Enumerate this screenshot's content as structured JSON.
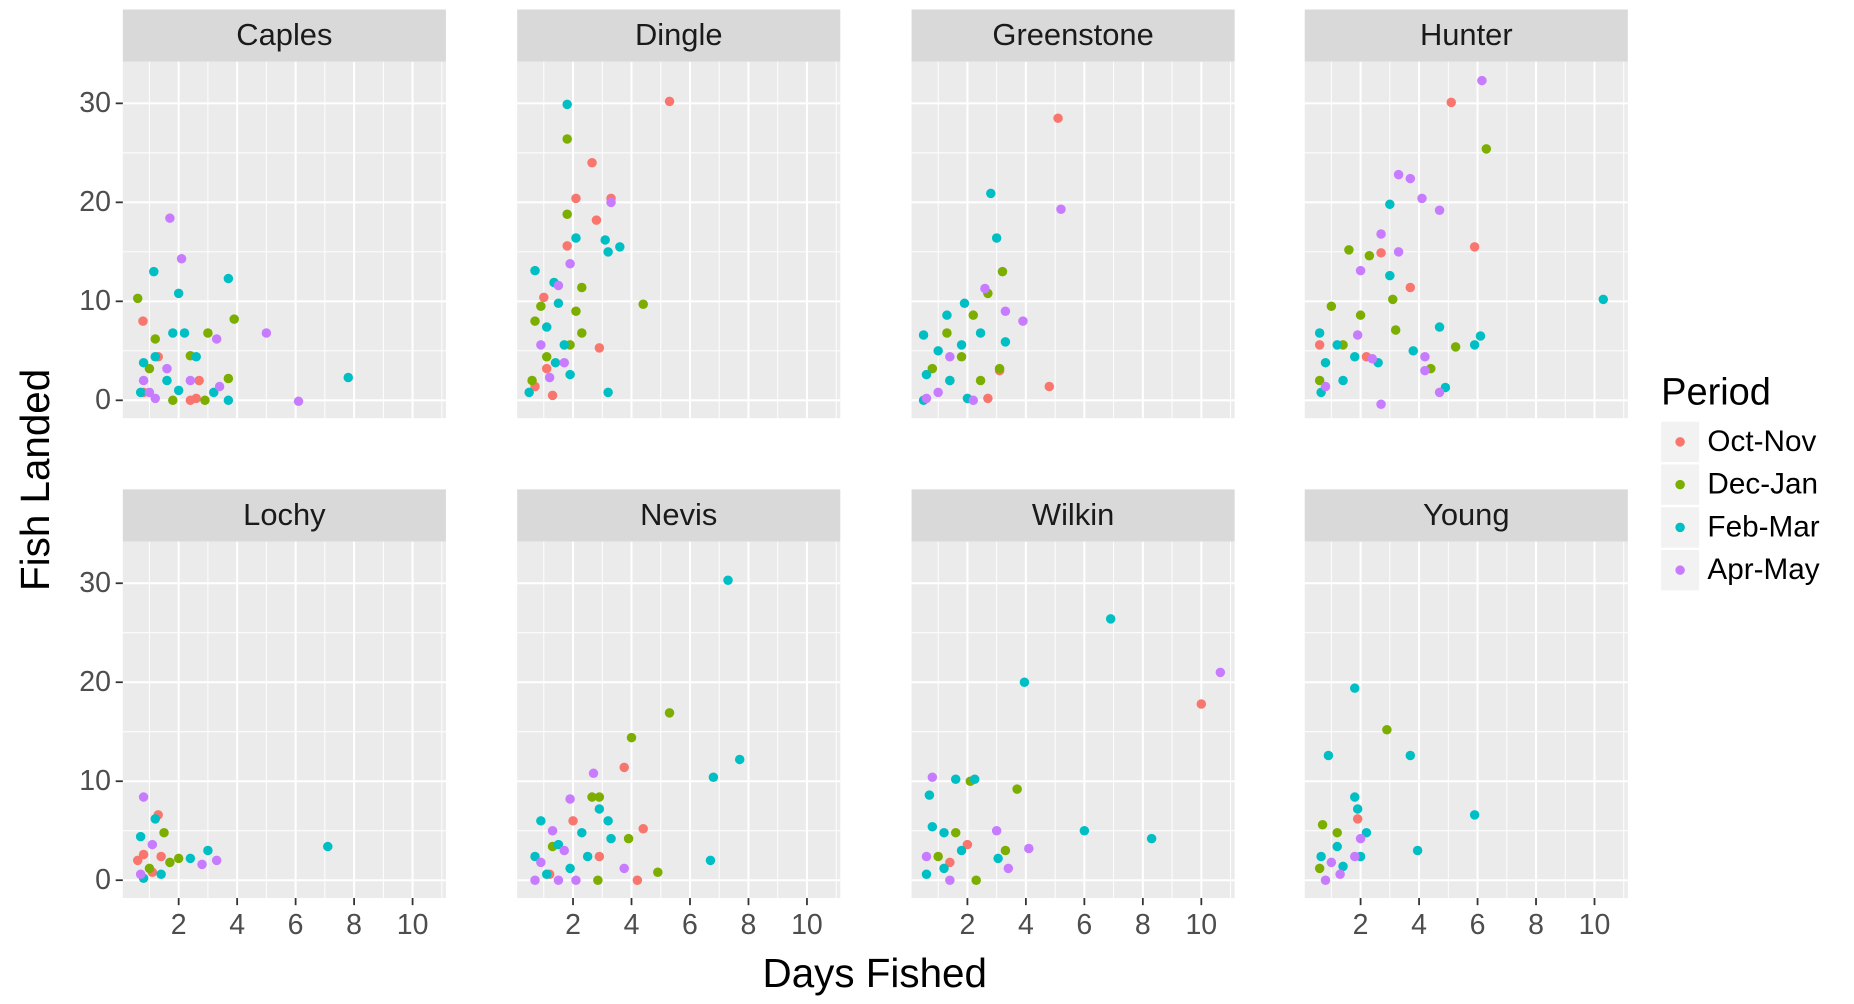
{
  "chart_data": {
    "type": "scatter",
    "x_label": "Days Fished",
    "y_label": "Fish Landed",
    "legend_title": "Period",
    "xlim": [
      0.09,
      11.14
    ],
    "ylim": [
      -1.8,
      34.2
    ],
    "xticks": [
      2,
      4,
      6,
      8,
      10
    ],
    "yticks": [
      0,
      10,
      20,
      30
    ],
    "grid": true,
    "facets": [
      {
        "title": "Caples",
        "series": [
          {
            "name": "Oct-Nov",
            "color": "#F8766D",
            "x": [
              0.78,
              1.3,
              2.4,
              2.6,
              2.7,
              0.8
            ],
            "y": [
              8.0,
              4.4,
              0,
              0.2,
              2,
              0.8
            ]
          },
          {
            "name": "Dec-Jan",
            "color": "#7CAE00",
            "x": [
              0.6,
              3.9,
              3.0,
              1.2,
              3.7,
              1.8,
              2.4,
              1.0,
              2.9
            ],
            "y": [
              10.3,
              8.2,
              6.8,
              6.2,
              2.2,
              0,
              4.5,
              3.2,
              0
            ]
          },
          {
            "name": "Feb-Mar",
            "color": "#00BFC4",
            "x": [
              1.15,
              2.0,
              3.7,
              7.8,
              3.7,
              1.8,
              2.2,
              0.8,
              1.2,
              2.6,
              1.6,
              2.0,
              3.2,
              0.7
            ],
            "y": [
              13,
              10.8,
              12.3,
              2.3,
              0,
              6.8,
              6.8,
              3.8,
              4.4,
              4.4,
              2,
              1,
              0.8,
              0.8
            ]
          },
          {
            "name": "Apr-May",
            "color": "#C77CFF",
            "x": [
              1.7,
              2.1,
              5.0,
              6.1,
              3.3,
              0.8,
              1.0,
              1.2,
              2.4,
              1.6,
              3.4
            ],
            "y": [
              18.4,
              14.3,
              6.8,
              -0.1,
              6.2,
              2,
              0.8,
              0.2,
              2,
              3.2,
              1.4
            ]
          }
        ]
      },
      {
        "title": "Dingle",
        "series": [
          {
            "name": "Oct-Nov",
            "color": "#F8766D",
            "x": [
              5.3,
              2.65,
              2.1,
              3.3,
              2.8,
              1.8,
              1.0,
              2.9,
              1.1,
              0.7,
              1.3
            ],
            "y": [
              30.2,
              24,
              20.4,
              20.4,
              18.2,
              15.6,
              10.4,
              5.3,
              3.2,
              1.4,
              0.5
            ]
          },
          {
            "name": "Dec-Jan",
            "color": "#7CAE00",
            "x": [
              1.8,
              1.8,
              2.3,
              4.4,
              0.9,
              2.1,
              0.7,
              1.9,
              1.1,
              0.6,
              2.3
            ],
            "y": [
              26.4,
              18.8,
              11.4,
              9.7,
              9.5,
              9,
              8,
              5.6,
              4.4,
              2,
              6.8
            ]
          },
          {
            "name": "Feb-Mar",
            "color": "#00BFC4",
            "x": [
              1.8,
              2.1,
              3.1,
              3.6,
              3.2,
              0.7,
              1.35,
              1.5,
              3.2,
              1.1,
              1.7,
              1.4,
              0.5,
              1.9
            ],
            "y": [
              29.9,
              16.4,
              16.2,
              15.5,
              15,
              13.1,
              11.9,
              9.8,
              0.8,
              7.4,
              5.6,
              3.8,
              0.8,
              2.6
            ]
          },
          {
            "name": "Apr-May",
            "color": "#C77CFF",
            "x": [
              1.9,
              3.3,
              1.5,
              0.9,
              1.2,
              1.7
            ],
            "y": [
              13.8,
              20,
              11.6,
              5.6,
              2.3,
              3.8
            ]
          }
        ]
      },
      {
        "title": "Greenstone",
        "series": [
          {
            "name": "Oct-Nov",
            "color": "#F8766D",
            "x": [
              5.1,
              4.8,
              3.1,
              1.4,
              2.7
            ],
            "y": [
              28.5,
              1.4,
              3.0,
              2,
              0.2
            ]
          },
          {
            "name": "Dec-Jan",
            "color": "#7CAE00",
            "x": [
              3.2,
              2.7,
              2.2,
              1.3,
              1.8,
              3.1,
              0.8,
              2.45
            ],
            "y": [
              13,
              10.8,
              8.6,
              6.8,
              4.4,
              3.2,
              3.2,
              2
            ]
          },
          {
            "name": "Feb-Mar",
            "color": "#00BFC4",
            "x": [
              2.8,
              3.0,
              1.9,
              1.3,
              0.5,
              1.0,
              0.6,
              1.8,
              2.45,
              3.3,
              0.5,
              1.4,
              2.0
            ],
            "y": [
              20.9,
              16.4,
              9.8,
              8.6,
              6.6,
              5.0,
              2.6,
              5.6,
              6.8,
              5.9,
              0,
              2,
              0.2
            ]
          },
          {
            "name": "Apr-May",
            "color": "#C77CFF",
            "x": [
              5.2,
              2.6,
              3.9,
              3.3,
              1.0,
              0.6,
              1.4,
              2.2
            ],
            "y": [
              19.3,
              11.3,
              8,
              9,
              0.8,
              0.2,
              4.4,
              0
            ]
          }
        ]
      },
      {
        "title": "Hunter",
        "series": [
          {
            "name": "Oct-Nov",
            "color": "#F8766D",
            "x": [
              5.1,
              5.9,
              3.7,
              2.7,
              2.2,
              0.6
            ],
            "y": [
              30.1,
              15.5,
              11.4,
              14.9,
              4.4,
              5.6
            ]
          },
          {
            "name": "Dec-Jan",
            "color": "#7CAE00",
            "x": [
              6.3,
              1.6,
              2.3,
              2.0,
              3.1,
              5.25,
              1.0,
              1.4,
              3.2,
              4.4,
              0.6
            ],
            "y": [
              25.4,
              15.2,
              14.6,
              8.6,
              10.2,
              5.4,
              9.5,
              5.6,
              7.1,
              3.2,
              2
            ]
          },
          {
            "name": "Feb-Mar",
            "color": "#00BFC4",
            "x": [
              10.3,
              3.0,
              3.0,
              4.7,
              6.1,
              5.9,
              4.9,
              0.6,
              1.2,
              0.8,
              1.8,
              2.6,
              3.8,
              1.4,
              0.65
            ],
            "y": [
              10.2,
              19.8,
              12.6,
              7.4,
              6.5,
              5.6,
              1.3,
              6.8,
              5.6,
              3.8,
              4.4,
              3.8,
              5.0,
              2,
              0.8
            ]
          },
          {
            "name": "Apr-May",
            "color": "#C77CFF",
            "x": [
              6.15,
              3.3,
              3.7,
              4.1,
              4.7,
              2.7,
              3.3,
              2.0,
              1.9,
              4.2,
              4.7,
              2.7,
              0.8,
              2.4,
              4.2
            ],
            "y": [
              32.3,
              22.8,
              22.4,
              20.4,
              19.2,
              16.8,
              15,
              13.1,
              6.6,
              3,
              0.8,
              -0.4,
              1.4,
              4.2,
              4.4
            ]
          }
        ]
      },
      {
        "title": "Lochy",
        "series": [
          {
            "name": "Oct-Nov",
            "color": "#F8766D",
            "x": [
              0.8,
              1.3,
              1.4,
              1.1,
              0.6
            ],
            "y": [
              2.6,
              6.6,
              2.4,
              0.8,
              2
            ]
          },
          {
            "name": "Dec-Jan",
            "color": "#7CAE00",
            "x": [
              1.5,
              1.7,
              1.0,
              2.0
            ],
            "y": [
              4.8,
              1.8,
              1.2,
              2.2
            ]
          },
          {
            "name": "Feb-Mar",
            "color": "#00BFC4",
            "x": [
              7.1,
              3.0,
              2.4,
              0.7,
              1.2,
              0.8,
              1.4
            ],
            "y": [
              3.4,
              3.0,
              2.2,
              4.4,
              6.2,
              0.2,
              0.6
            ]
          },
          {
            "name": "Apr-May",
            "color": "#C77CFF",
            "x": [
              0.8,
              3.3,
              2.8,
              1.1,
              0.7
            ],
            "y": [
              8.4,
              2,
              1.6,
              3.6,
              0.6
            ]
          }
        ]
      },
      {
        "title": "Nevis",
        "series": [
          {
            "name": "Oct-Nov",
            "color": "#F8766D",
            "x": [
              3.75,
              4.4,
              4.2,
              2.0,
              1.2,
              2.9
            ],
            "y": [
              11.4,
              5.2,
              0,
              6,
              0.6,
              2.4
            ]
          },
          {
            "name": "Dec-Jan",
            "color": "#7CAE00",
            "x": [
              5.3,
              4.0,
              2.65,
              2.9,
              3.9,
              4.9,
              2.85,
              1.3
            ],
            "y": [
              16.9,
              14.4,
              8.4,
              8.4,
              4.2,
              0.8,
              0,
              3.4
            ]
          },
          {
            "name": "Feb-Mar",
            "color": "#00BFC4",
            "x": [
              7.3,
              7.7,
              6.8,
              6.7,
              3.2,
              2.9,
              2.3,
              1.5,
              0.9,
              0.7,
              1.1,
              1.9,
              2.5,
              3.3
            ],
            "y": [
              30.3,
              12.2,
              10.4,
              2,
              6,
              7.2,
              4.8,
              3.6,
              6,
              2.4,
              0.6,
              1.2,
              2.4,
              4.2
            ]
          },
          {
            "name": "Apr-May",
            "color": "#C77CFF",
            "x": [
              2.7,
              1.9,
              3.75,
              1.3,
              0.7,
              1.5,
              0.9,
              2.1,
              1.7
            ],
            "y": [
              10.8,
              8.2,
              1.2,
              5,
              0,
              0,
              1.8,
              0,
              3
            ]
          }
        ]
      },
      {
        "title": "Wilkin",
        "series": [
          {
            "name": "Oct-Nov",
            "color": "#F8766D",
            "x": [
              10.0,
              2.0,
              1.4
            ],
            "y": [
              17.8,
              3.6,
              1.8
            ]
          },
          {
            "name": "Dec-Jan",
            "color": "#7CAE00",
            "x": [
              3.7,
              2.1,
              3.3,
              2.3,
              1.0,
              1.6
            ],
            "y": [
              9.2,
              10,
              3,
              0,
              2.4,
              4.8
            ]
          },
          {
            "name": "Feb-Mar",
            "color": "#00BFC4",
            "x": [
              6.9,
              3.95,
              6.0,
              8.3,
              1.6,
              2.25,
              0.7,
              0.8,
              1.2,
              1.8,
              0.6,
              3.05,
              1.2
            ],
            "y": [
              26.4,
              20,
              5,
              4.2,
              10.2,
              10.2,
              8.6,
              5.4,
              4.8,
              3,
              0.6,
              2.2,
              1.2
            ]
          },
          {
            "name": "Apr-May",
            "color": "#C77CFF",
            "x": [
              10.65,
              0.8,
              4.1,
              3.0,
              3.4,
              0.6,
              1.4
            ],
            "y": [
              21,
              10.4,
              3.2,
              5,
              1.2,
              2.4,
              0
            ]
          }
        ]
      },
      {
        "title": "Young",
        "series": [
          {
            "name": "Oct-Nov",
            "color": "#F8766D",
            "x": [
              1.9
            ],
            "y": [
              6.2
            ]
          },
          {
            "name": "Dec-Jan",
            "color": "#7CAE00",
            "x": [
              2.9,
              0.7,
              1.2,
              0.6
            ],
            "y": [
              15.2,
              5.6,
              4.8,
              1.2
            ]
          },
          {
            "name": "Feb-Mar",
            "color": "#00BFC4",
            "x": [
              1.8,
              0.9,
              3.7,
              5.9,
              3.95,
              1.8,
              1.9,
              2.2,
              1.2,
              0.65,
              1.4,
              2.0
            ],
            "y": [
              19.4,
              12.6,
              12.6,
              6.6,
              3,
              8.4,
              7.2,
              4.8,
              3.4,
              2.4,
              1.4,
              2.4
            ]
          },
          {
            "name": "Apr-May",
            "color": "#C77CFF",
            "x": [
              2.0,
              1.3,
              0.8,
              1.8,
              1.0
            ],
            "y": [
              4.2,
              0.6,
              0,
              2.4,
              1.8
            ]
          }
        ]
      }
    ]
  }
}
